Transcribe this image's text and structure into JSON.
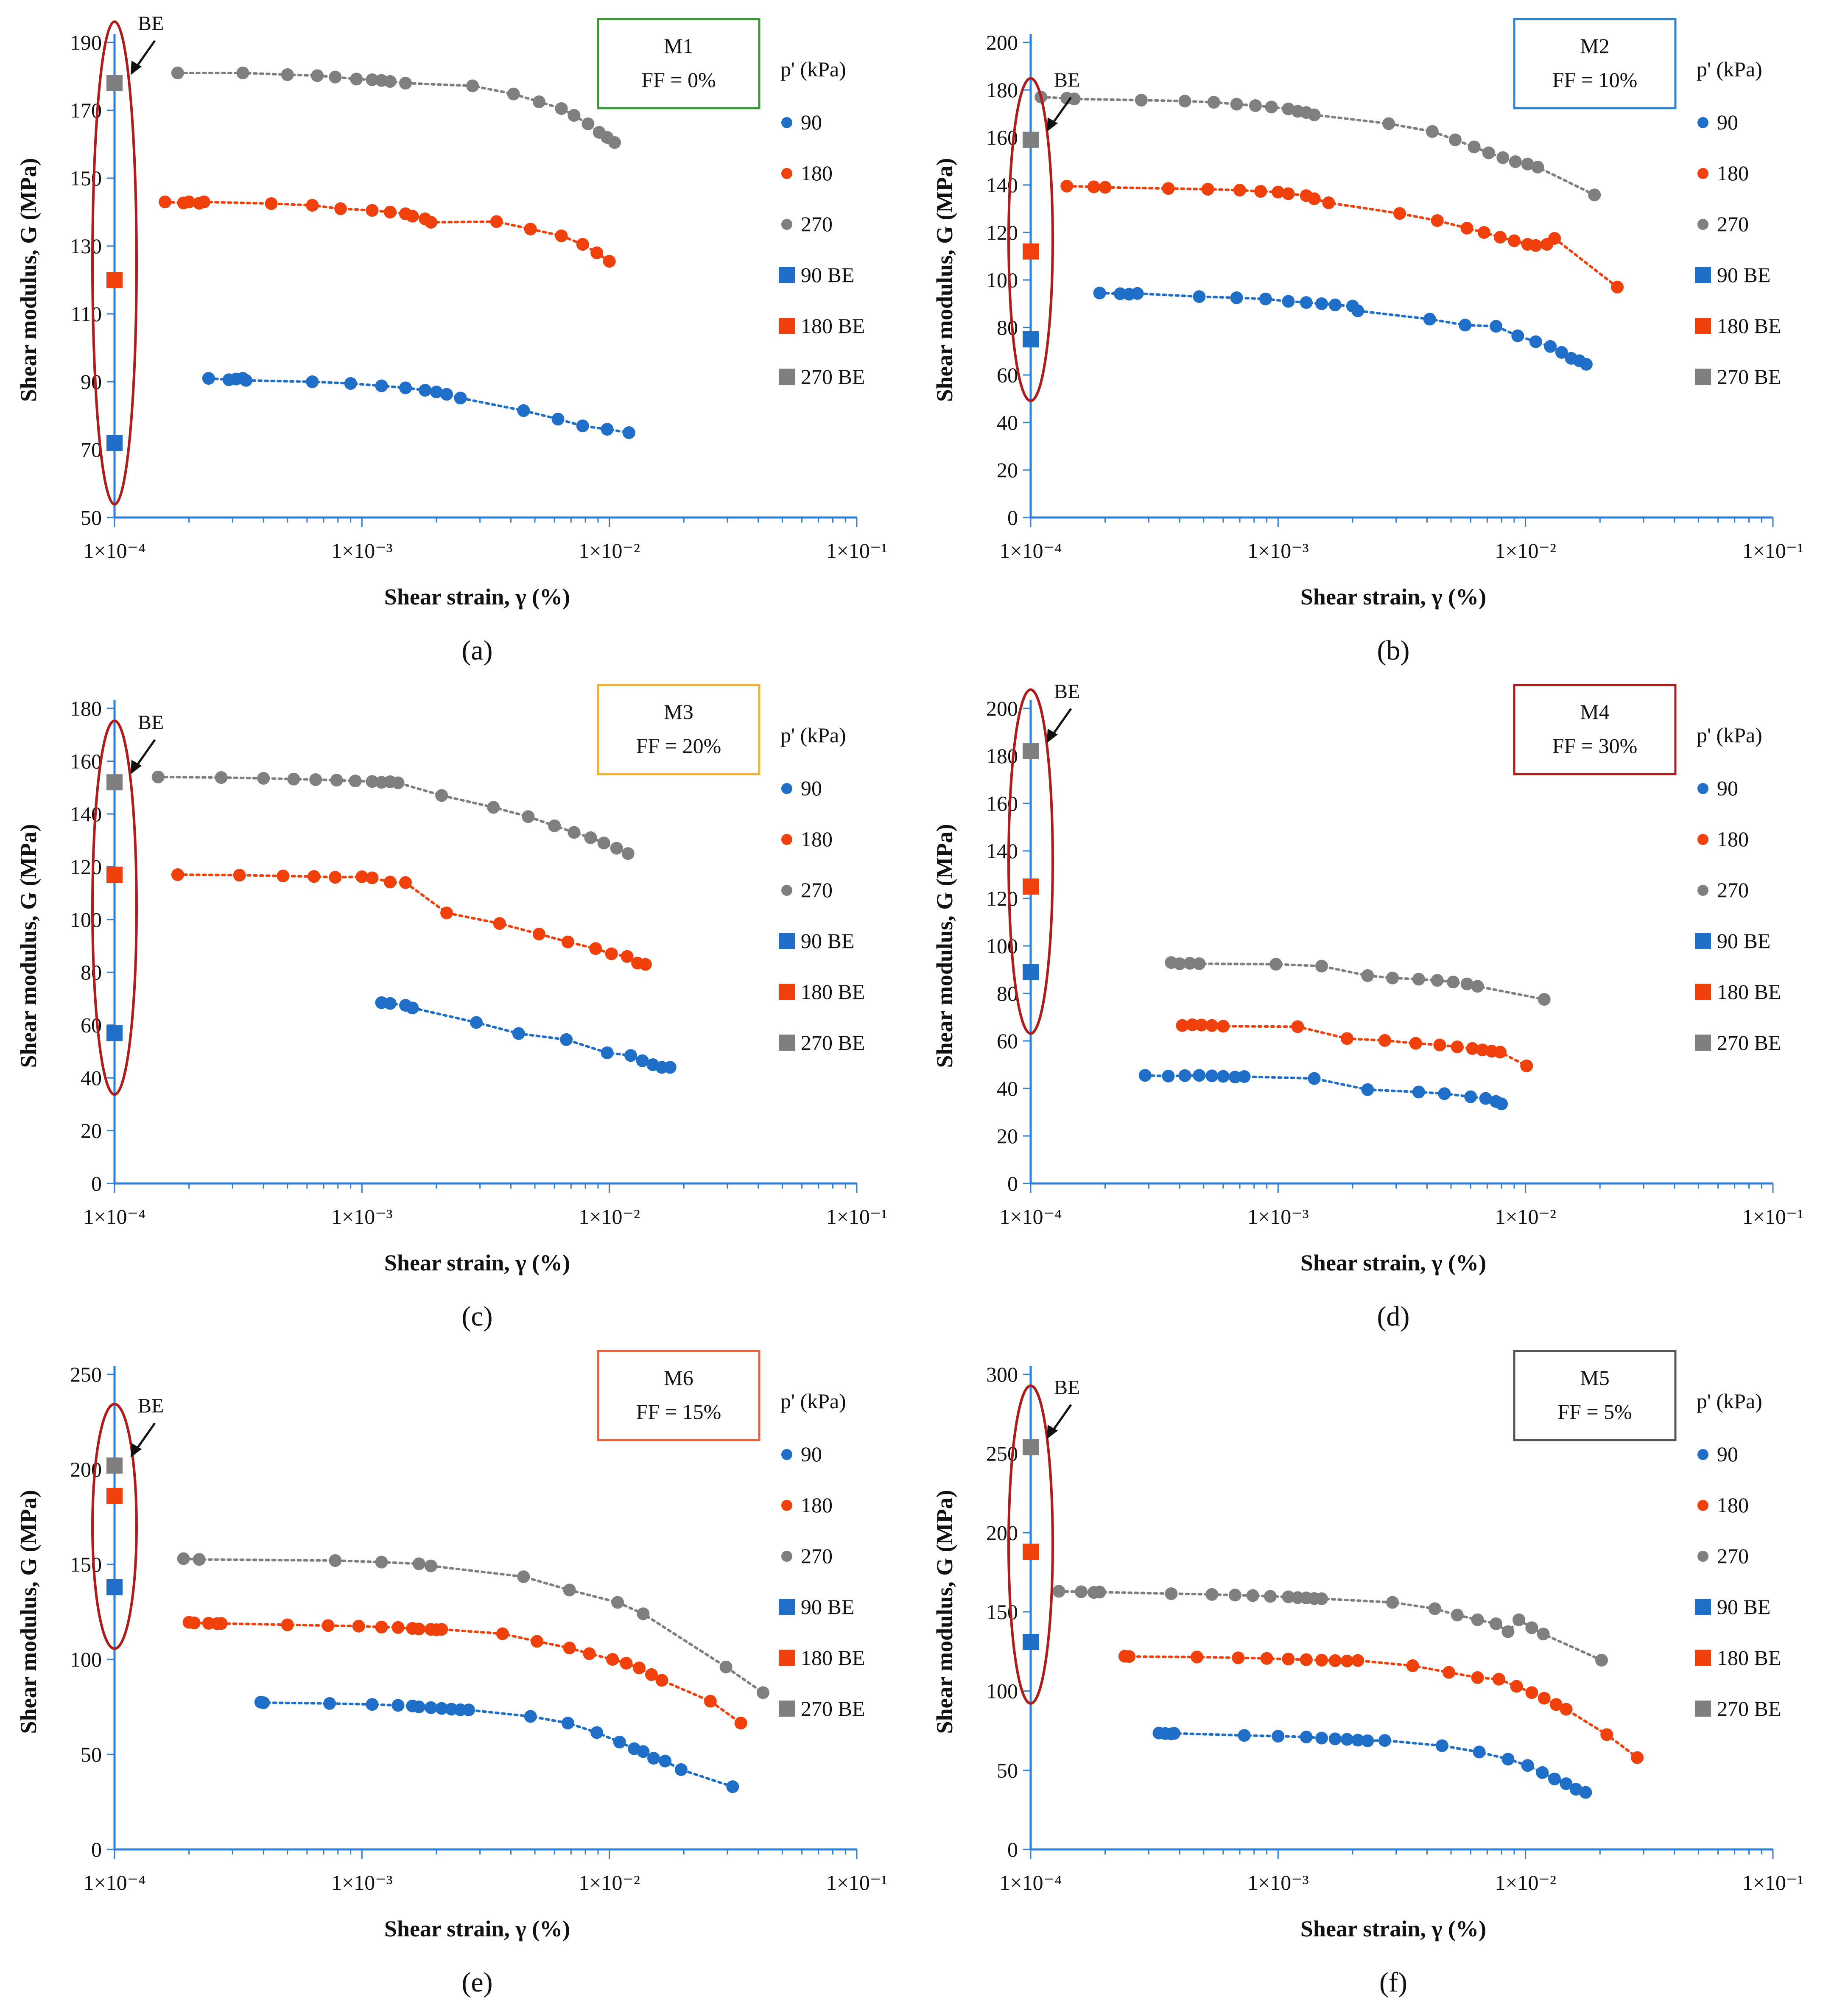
{
  "colors": {
    "p90": "#1f6fc8",
    "p180": "#f0400c",
    "p270": "#7f7f7f",
    "axis": "#2e7fd6",
    "ellipse": "#b01c1c"
  },
  "common": {
    "xlabel": "Shear strain, γ (%)",
    "ylabel": "Shear modulus, G (MPa)",
    "x_tick_labels": [
      "1×10⁻⁴",
      "1×10⁻³",
      "1×10⁻²",
      "1×10⁻¹"
    ],
    "legend_title": "p' (kPa)",
    "legend_entries": [
      "90",
      "180",
      "270",
      "90 BE",
      "180 BE",
      "270 BE"
    ],
    "be_annotation": "BE"
  },
  "chart_data": [
    {
      "panel": "(a)",
      "type": "scatter",
      "title": "M1",
      "subtitle": "FF = 0%",
      "box_color": "#3a9b35",
      "xscale": "log",
      "xlim": [
        0.0001,
        0.1
      ],
      "ylim": [
        50,
        190
      ],
      "yticks": [
        50,
        70,
        90,
        110,
        130,
        150,
        170,
        190
      ],
      "be_values": {
        "90": 72,
        "180": 120,
        "270": 178
      },
      "series": [
        {
          "name": "90",
          "x": [
            0.00024,
            0.00029,
            0.00031,
            0.00033,
            0.00034,
            0.00063,
            0.0009,
            0.0012,
            0.0015,
            0.0018,
            0.002,
            0.0022,
            0.0025,
            0.0045,
            0.0062,
            0.0078,
            0.0098,
            0.012
          ],
          "y": [
            91,
            90.6,
            90.8,
            91,
            90.4,
            90,
            89.5,
            88.8,
            88.2,
            87.5,
            87,
            86.3,
            85.2,
            81.5,
            79,
            77,
            76,
            75
          ]
        },
        {
          "name": "180",
          "x": [
            0.00016,
            0.00019,
            0.0002,
            0.00022,
            0.00023,
            0.00043,
            0.00063,
            0.00082,
            0.0011,
            0.0013,
            0.0015,
            0.0016,
            0.0018,
            0.0019,
            0.0035,
            0.0048,
            0.0064,
            0.0078,
            0.0089,
            0.01
          ],
          "y": [
            143,
            142.7,
            143,
            142.6,
            143,
            142.5,
            142,
            141,
            140.5,
            140,
            139.5,
            138.8,
            138,
            137,
            137.2,
            135,
            133,
            130.5,
            128,
            125.5
          ]
        },
        {
          "name": "270",
          "x": [
            0.00018,
            0.00033,
            0.0005,
            0.00066,
            0.00078,
            0.00095,
            0.0011,
            0.0012,
            0.0013,
            0.0015,
            0.0028,
            0.0041,
            0.0052,
            0.0064,
            0.0072,
            0.0082,
            0.0091,
            0.0098,
            0.0105
          ],
          "y": [
            181,
            181,
            180.5,
            180.2,
            179.8,
            179.2,
            179,
            178.8,
            178.5,
            178,
            177.2,
            174.8,
            172.5,
            170.5,
            168.5,
            166,
            163.5,
            162,
            160.5
          ]
        }
      ]
    },
    {
      "panel": "(b)",
      "type": "scatter",
      "title": "M2",
      "subtitle": "FF = 10%",
      "box_color": "#2e86d3",
      "xscale": "log",
      "xlim": [
        0.0001,
        0.1
      ],
      "ylim": [
        0,
        200
      ],
      "yticks": [
        0,
        20,
        40,
        60,
        80,
        100,
        120,
        140,
        160,
        180,
        200
      ],
      "be_values": {
        "90": 75,
        "180": 112,
        "270": 159
      },
      "series": [
        {
          "name": "90",
          "x": [
            0.00019,
            0.00023,
            0.00025,
            0.00027,
            0.00048,
            0.00068,
            0.00089,
            0.0011,
            0.0013,
            0.0015,
            0.0017,
            0.002,
            0.0021,
            0.0041,
            0.0057,
            0.0076,
            0.0093,
            0.011,
            0.0126,
            0.014,
            0.0153,
            0.0165,
            0.0176
          ],
          "y": [
            94.5,
            94.2,
            94,
            94.3,
            93,
            92.5,
            92,
            91,
            90.5,
            90,
            89.5,
            89,
            87,
            83.5,
            81,
            80.5,
            76.5,
            74,
            72,
            69.5,
            67,
            66,
            64.5
          ]
        },
        {
          "name": "180",
          "x": [
            0.00014,
            0.00018,
            0.0002,
            0.00036,
            0.00052,
            0.0007,
            0.00085,
            0.001,
            0.0011,
            0.0013,
            0.0014,
            0.0016,
            0.0031,
            0.0044,
            0.0058,
            0.0068,
            0.0079,
            0.009,
            0.0102,
            0.011,
            0.0122,
            0.0131,
            0.0235
          ],
          "y": [
            139.5,
            139.2,
            139,
            138.5,
            138.2,
            137.8,
            137.3,
            137,
            136.3,
            135.5,
            134.2,
            132.5,
            128,
            125,
            121.8,
            120,
            118,
            116.5,
            115,
            114.5,
            115,
            117.5,
            97
          ]
        },
        {
          "name": "270",
          "x": [
            0.00011,
            0.00014,
            0.00015,
            0.00028,
            0.00042,
            0.00055,
            0.00068,
            0.00081,
            0.00094,
            0.0011,
            0.0012,
            0.0013,
            0.0014,
            0.0028,
            0.0042,
            0.0052,
            0.0062,
            0.0071,
            0.0081,
            0.0091,
            0.0102,
            0.0112,
            0.019
          ],
          "y": [
            177,
            176.5,
            176.2,
            175.7,
            175.3,
            174.8,
            174,
            173.4,
            172.8,
            172,
            171,
            170.5,
            169.5,
            165.8,
            162.5,
            159,
            156,
            153.5,
            151.5,
            149.8,
            148.8,
            147.5,
            135.8
          ]
        }
      ]
    },
    {
      "panel": "(c)",
      "type": "scatter",
      "title": "M3",
      "subtitle": "FF = 20%",
      "box_color": "#f2b233",
      "xscale": "log",
      "xlim": [
        0.0001,
        0.1
      ],
      "ylim": [
        0,
        180
      ],
      "yticks": [
        0,
        20,
        40,
        60,
        80,
        100,
        120,
        140,
        160,
        180
      ],
      "be_values": {
        "90": 57,
        "180": 117,
        "270": 152
      },
      "series": [
        {
          "name": "90",
          "x": [
            0.0012,
            0.0013,
            0.0015,
            0.0016,
            0.0029,
            0.0043,
            0.0067,
            0.0098,
            0.0122,
            0.0136,
            0.015,
            0.0163,
            0.0176
          ],
          "y": [
            68.5,
            68.2,
            67.5,
            66.5,
            61,
            56.8,
            54.5,
            49.5,
            48.5,
            46.5,
            45,
            44,
            44
          ]
        },
        {
          "name": "180",
          "x": [
            0.00018,
            0.00032,
            0.00048,
            0.00064,
            0.00078,
            0.001,
            0.0011,
            0.0013,
            0.0015,
            0.0022,
            0.0036,
            0.0052,
            0.0068,
            0.0088,
            0.0102,
            0.0118,
            0.013,
            0.014
          ],
          "y": [
            117,
            116.8,
            116.5,
            116.3,
            116,
            116.2,
            115.8,
            114.2,
            114,
            102.5,
            98.5,
            94.5,
            91.5,
            89,
            87,
            86,
            83.5,
            83
          ]
        },
        {
          "name": "270",
          "x": [
            0.00015,
            0.00027,
            0.0004,
            0.00053,
            0.00065,
            0.00079,
            0.00094,
            0.0011,
            0.0012,
            0.0013,
            0.0014,
            0.0021,
            0.0034,
            0.0047,
            0.006,
            0.0072,
            0.0084,
            0.0095,
            0.0107,
            0.0119
          ],
          "y": [
            154,
            153.8,
            153.5,
            153.2,
            153,
            152.8,
            152.5,
            152.3,
            152,
            152.2,
            151.8,
            147,
            142.5,
            139,
            135.5,
            133,
            131,
            129,
            127,
            125
          ]
        }
      ]
    },
    {
      "panel": "(d)",
      "type": "scatter",
      "title": "M4",
      "subtitle": "FF = 30%",
      "box_color": "#b01c1c",
      "xscale": "log",
      "xlim": [
        0.0001,
        0.1
      ],
      "ylim": [
        0,
        200
      ],
      "yticks": [
        0,
        20,
        40,
        60,
        80,
        100,
        120,
        140,
        160,
        180,
        200
      ],
      "be_values": {
        "90": 89,
        "180": 125,
        "270": 182
      },
      "series": [
        {
          "name": "90",
          "x": [
            0.00029,
            0.00036,
            0.00042,
            0.00048,
            0.00054,
            0.0006,
            0.00067,
            0.00073,
            0.0014,
            0.0023,
            0.0037,
            0.0047,
            0.006,
            0.0069,
            0.0076,
            0.008
          ],
          "y": [
            45.5,
            45.2,
            45.4,
            45.5,
            45.3,
            45.1,
            44.8,
            45,
            44.2,
            39.5,
            38.5,
            37.8,
            36.5,
            35.8,
            34.5,
            33.5
          ]
        },
        {
          "name": "180",
          "x": [
            0.00041,
            0.00045,
            0.00049,
            0.00054,
            0.0006,
            0.0012,
            0.0019,
            0.0027,
            0.0036,
            0.0045,
            0.0053,
            0.0061,
            0.0067,
            0.0073,
            0.0079,
            0.0101
          ],
          "y": [
            66.5,
            66.8,
            66.7,
            66.5,
            66.2,
            66,
            61,
            60.2,
            59,
            58.3,
            57.5,
            56.8,
            56.2,
            55.7,
            55.3,
            49.5
          ]
        },
        {
          "name": "270",
          "x": [
            0.00037,
            0.0004,
            0.00044,
            0.00048,
            0.00098,
            0.0015,
            0.0023,
            0.0029,
            0.0037,
            0.0044,
            0.0051,
            0.0058,
            0.0064,
            0.0119
          ],
          "y": [
            93,
            92.5,
            92.7,
            92.5,
            92.3,
            91.5,
            87.5,
            86.5,
            86,
            85.5,
            84.8,
            84,
            83,
            77.5
          ]
        }
      ]
    },
    {
      "panel": "(e)",
      "type": "scatter",
      "title": "M6",
      "subtitle": "FF = 15%",
      "box_color": "#e8643c",
      "xscale": "log",
      "xlim": [
        0.0001,
        0.1
      ],
      "ylim": [
        0,
        250
      ],
      "yticks": [
        0,
        50,
        100,
        150,
        200,
        250
      ],
      "be_values": {
        "90": 138,
        "180": 186,
        "270": 202
      },
      "series": [
        {
          "name": "90",
          "x": [
            0.00039,
            0.0004,
            0.00074,
            0.0011,
            0.0014,
            0.0016,
            0.0017,
            0.0019,
            0.0021,
            0.0023,
            0.0025,
            0.0027,
            0.0048,
            0.0068,
            0.0089,
            0.011,
            0.0126,
            0.0137,
            0.0151,
            0.0168,
            0.0195,
            0.0315
          ],
          "y": [
            77.5,
            77.2,
            76.8,
            76.3,
            75.8,
            75.5,
            75,
            74.6,
            74.2,
            73.8,
            73.5,
            73.4,
            70,
            66.5,
            61.5,
            56.5,
            53,
            51.5,
            48,
            46.5,
            42,
            33
          ]
        },
        {
          "name": "180",
          "x": [
            0.0002,
            0.00021,
            0.00024,
            0.00026,
            0.00027,
            0.0005,
            0.00073,
            0.00097,
            0.0012,
            0.0014,
            0.0016,
            0.0017,
            0.0019,
            0.002,
            0.0021,
            0.0037,
            0.0051,
            0.0069,
            0.0083,
            0.0103,
            0.0117,
            0.0132,
            0.0148,
            0.0163,
            0.0256,
            0.034
          ],
          "y": [
            119.5,
            119.2,
            119,
            118.8,
            118.9,
            118.2,
            117.8,
            117.5,
            117,
            116.8,
            116.3,
            116,
            115.8,
            115.6,
            115.8,
            113.5,
            109.5,
            106,
            103,
            100,
            98,
            95.5,
            92,
            89,
            78,
            66.5
          ]
        },
        {
          "name": "270",
          "x": [
            0.00019,
            0.00022,
            0.00078,
            0.0012,
            0.0017,
            0.0019,
            0.0045,
            0.0069,
            0.0108,
            0.0137,
            0.0296,
            0.0418
          ],
          "y": [
            153,
            152.6,
            152,
            151.2,
            150.3,
            149.2,
            143.5,
            136.5,
            130,
            124,
            96,
            82.5
          ]
        }
      ]
    },
    {
      "panel": "(f)",
      "type": "scatter",
      "title": "M5",
      "subtitle": "FF = 5%",
      "box_color": "#555555",
      "xscale": "log",
      "xlim": [
        0.0001,
        0.1
      ],
      "ylim": [
        0,
        300
      ],
      "yticks": [
        0,
        50,
        100,
        150,
        200,
        250,
        300
      ],
      "be_values": {
        "90": 131,
        "180": 188,
        "270": 254
      },
      "series": [
        {
          "name": "90",
          "x": [
            0.00033,
            0.00035,
            0.00037,
            0.00038,
            0.00073,
            0.001,
            0.0013,
            0.0015,
            0.0017,
            0.0019,
            0.0021,
            0.0023,
            0.0027,
            0.0046,
            0.0065,
            0.0085,
            0.0102,
            0.0117,
            0.0131,
            0.0146,
            0.016,
            0.0175
          ],
          "y": [
            73.5,
            73.2,
            73,
            73.3,
            72,
            71.5,
            71,
            70.3,
            69.8,
            69.5,
            69,
            68.6,
            68.8,
            65.5,
            61.5,
            57,
            53,
            48.5,
            44.5,
            41.5,
            38,
            36
          ]
        },
        {
          "name": "180",
          "x": [
            0.00024,
            0.00025,
            0.00047,
            0.00069,
            0.0009,
            0.0011,
            0.0013,
            0.0015,
            0.0017,
            0.0019,
            0.0021,
            0.0035,
            0.0049,
            0.0064,
            0.0078,
            0.0092,
            0.0106,
            0.0119,
            0.0133,
            0.0146,
            0.0213,
            0.0283
          ],
          "y": [
            122,
            121.8,
            121.5,
            121,
            120.6,
            120.2,
            119.8,
            119.5,
            119.2,
            119,
            119.3,
            116,
            111.8,
            108.5,
            107.5,
            103,
            99,
            95.5,
            91.5,
            88.5,
            72.5,
            58
          ]
        },
        {
          "name": "270",
          "x": [
            0.00013,
            0.00016,
            0.00018,
            0.00019,
            0.00037,
            0.00054,
            0.00067,
            0.00079,
            0.00093,
            0.0011,
            0.0012,
            0.0013,
            0.0014,
            0.0015,
            0.0029,
            0.0043,
            0.0053,
            0.0064,
            0.0076,
            0.0085,
            0.0094,
            0.0106,
            0.0118,
            0.0203
          ],
          "y": [
            163,
            162.7,
            162.3,
            162.5,
            161.5,
            161,
            160.6,
            160.3,
            159.8,
            159.5,
            159,
            158.8,
            158.4,
            158.3,
            156,
            152,
            148,
            145,
            142.5,
            137.5,
            145,
            140,
            136,
            119.5
          ]
        }
      ]
    }
  ]
}
